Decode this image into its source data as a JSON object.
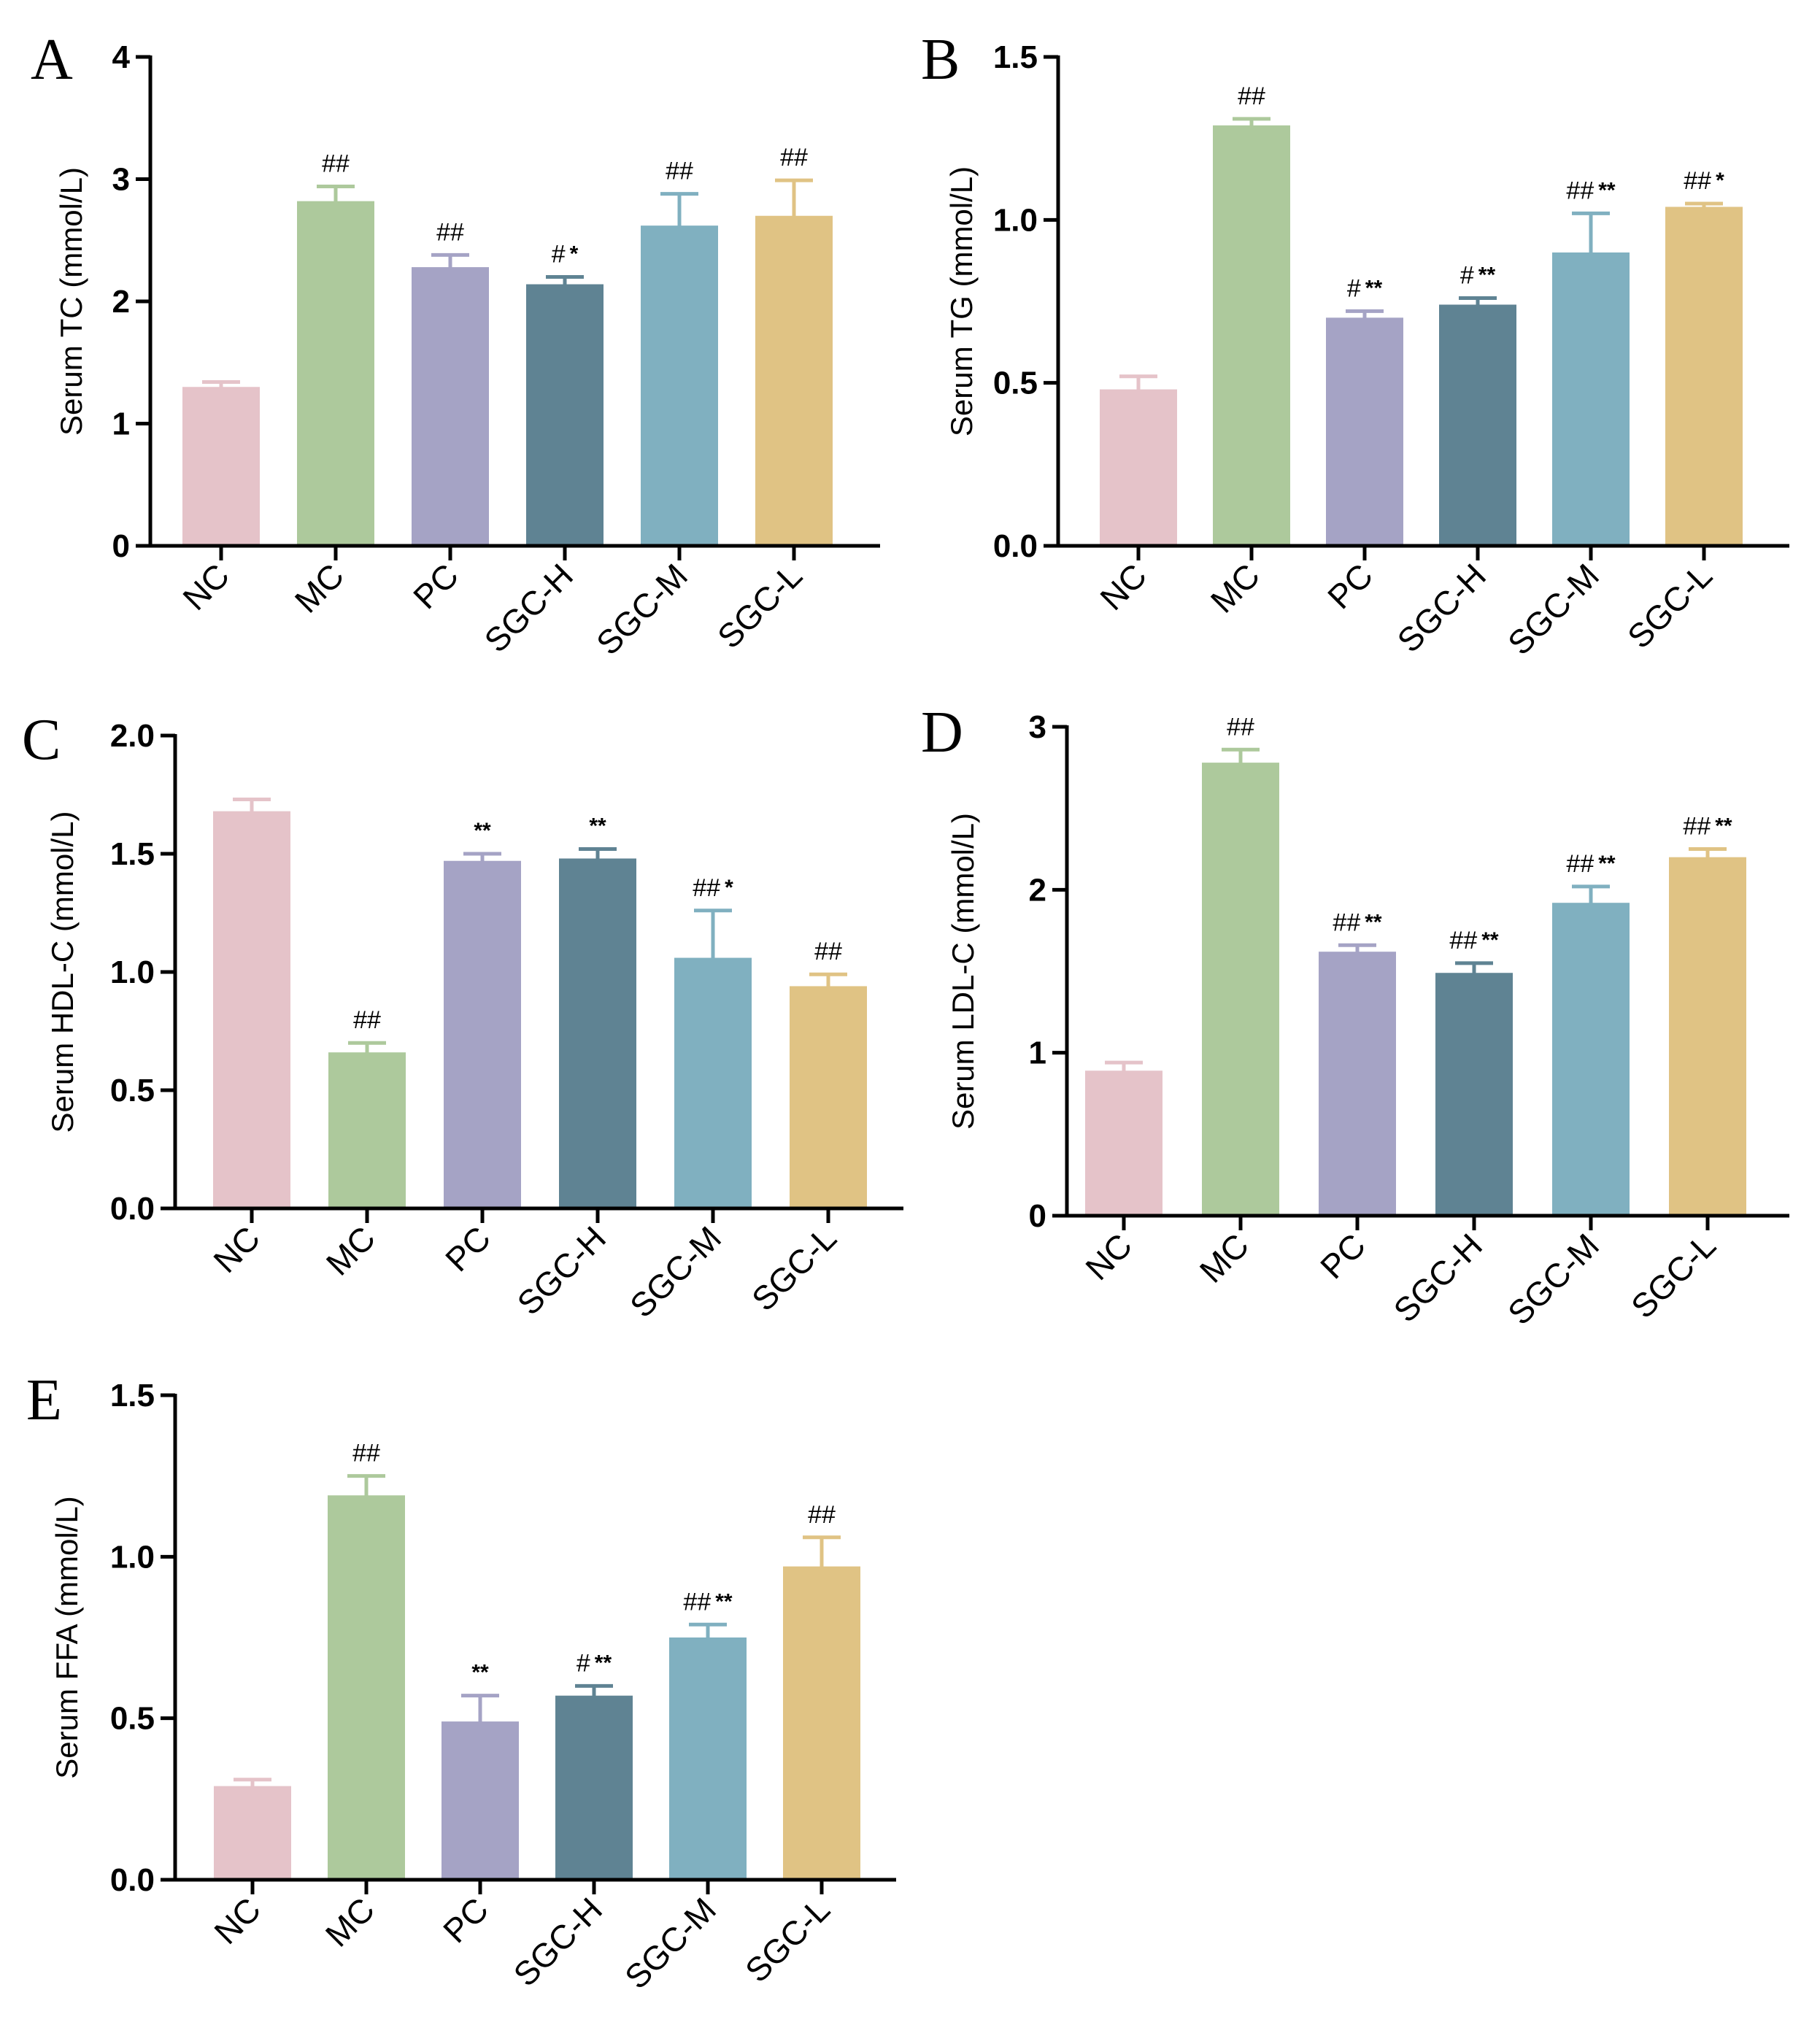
{
  "chart_data": [
    {
      "panel": "A",
      "type": "bar",
      "categories": [
        "NC",
        "MC",
        "PC",
        "SGC-H",
        "SGC-M",
        "SGC-L"
      ],
      "values": [
        1.3,
        2.82,
        2.28,
        2.14,
        2.62,
        2.7
      ],
      "errors": [
        0.04,
        0.12,
        0.1,
        0.06,
        0.26,
        0.29
      ],
      "annotations": [
        [
          "",
          ""
        ],
        [
          "##",
          ""
        ],
        [
          "##",
          ""
        ],
        [
          "#",
          "*"
        ],
        [
          "##",
          ""
        ],
        [
          "##",
          ""
        ]
      ],
      "ylabel": "Serum TC (mmol/L)",
      "ylim": [
        0,
        4
      ],
      "yticks": [
        0,
        1,
        2,
        3,
        4
      ],
      "ytick_labels": [
        "0",
        "1",
        "2",
        "3",
        "4"
      ]
    },
    {
      "panel": "B",
      "type": "bar",
      "categories": [
        "NC",
        "MC",
        "PC",
        "SGC-H",
        "SGC-M",
        "SGC-L"
      ],
      "values": [
        0.48,
        1.29,
        0.7,
        0.74,
        0.9,
        1.04
      ],
      "errors": [
        0.04,
        0.02,
        0.02,
        0.02,
        0.12,
        0.01
      ],
      "annotations": [
        [
          "",
          ""
        ],
        [
          "##",
          ""
        ],
        [
          "#",
          "**"
        ],
        [
          "#",
          "**"
        ],
        [
          "##",
          "**"
        ],
        [
          "##",
          "*"
        ]
      ],
      "ylabel": "Serum TG (mmol/L)",
      "ylim": [
        0,
        1.5
      ],
      "yticks": [
        0,
        0.5,
        1.0,
        1.5
      ],
      "ytick_labels": [
        "0.0",
        "0.5",
        "1.0",
        "1.5"
      ]
    },
    {
      "panel": "C",
      "type": "bar",
      "categories": [
        "NC",
        "MC",
        "PC",
        "SGC-H",
        "SGC-M",
        "SGC-L"
      ],
      "values": [
        1.68,
        0.66,
        1.47,
        1.48,
        1.06,
        0.94
      ],
      "errors": [
        0.05,
        0.04,
        0.03,
        0.04,
        0.2,
        0.05
      ],
      "annotations": [
        [
          "",
          ""
        ],
        [
          "##",
          ""
        ],
        [
          "",
          "**"
        ],
        [
          "",
          "**"
        ],
        [
          "##",
          "*"
        ],
        [
          "##",
          ""
        ]
      ],
      "ylabel": "Serum HDL-C (mmol/L)",
      "ylim": [
        0,
        2.0
      ],
      "yticks": [
        0,
        0.5,
        1.0,
        1.5,
        2.0
      ],
      "ytick_labels": [
        "0.0",
        "0.5",
        "1.0",
        "1.5",
        "2.0"
      ]
    },
    {
      "panel": "D",
      "type": "bar",
      "categories": [
        "NC",
        "MC",
        "PC",
        "SGC-H",
        "SGC-M",
        "SGC-L"
      ],
      "values": [
        0.89,
        2.78,
        1.62,
        1.49,
        1.92,
        2.2
      ],
      "errors": [
        0.05,
        0.08,
        0.04,
        0.06,
        0.1,
        0.05
      ],
      "annotations": [
        [
          "",
          ""
        ],
        [
          "##",
          ""
        ],
        [
          "##",
          "**"
        ],
        [
          "##",
          "**"
        ],
        [
          "##",
          "**"
        ],
        [
          "##",
          "**"
        ]
      ],
      "ylabel": "Serum LDL-C (mmol/L)",
      "ylim": [
        0,
        3
      ],
      "yticks": [
        0,
        1,
        2,
        3
      ],
      "ytick_labels": [
        "0",
        "1",
        "2",
        "3"
      ]
    },
    {
      "panel": "E",
      "type": "bar",
      "categories": [
        "NC",
        "MC",
        "PC",
        "SGC-H",
        "SGC-M",
        "SGC-L"
      ],
      "values": [
        0.29,
        1.19,
        0.49,
        0.57,
        0.75,
        0.97
      ],
      "errors": [
        0.02,
        0.06,
        0.08,
        0.03,
        0.04,
        0.09
      ],
      "annotations": [
        [
          "",
          ""
        ],
        [
          "##",
          ""
        ],
        [
          "",
          "**"
        ],
        [
          "#",
          "**"
        ],
        [
          "##",
          "**"
        ],
        [
          "##",
          ""
        ]
      ],
      "ylabel": "Serum FFA (mmol/L)",
      "ylim": [
        0,
        1.5
      ],
      "yticks": [
        0,
        0.5,
        1.0,
        1.5
      ],
      "ytick_labels": [
        "0.0",
        "0.5",
        "1.0",
        "1.5"
      ]
    }
  ],
  "bar_colors": [
    "#e5c3c9",
    "#adc99c",
    "#a5a3c5",
    "#5f8393",
    "#80b0c0",
    "#e0c384"
  ],
  "grid": false,
  "legend": "none"
}
